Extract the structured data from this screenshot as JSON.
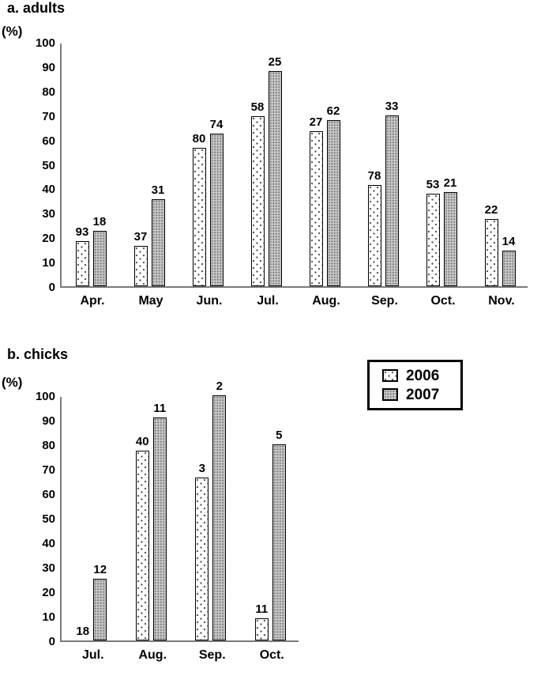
{
  "figure": {
    "background": "#ffffff",
    "colors": {
      "axis": "#7a7a7a",
      "bar_outline": "#000000",
      "bar_2006_fill": "#ffffff",
      "bar_2007_fill": "#c9c9c9",
      "text": "#000000"
    }
  },
  "legend": {
    "items": [
      {
        "label": "2006",
        "swatch": "sparse-dot-white"
      },
      {
        "label": "2007",
        "swatch": "dense-dot-gray"
      }
    ]
  },
  "chart_data": [
    {
      "id": "adults",
      "type": "bar",
      "title": "a. adults",
      "ylabel": "(%)",
      "ylim": [
        0,
        100
      ],
      "ytick_step": 10,
      "grid": false,
      "legend_position": "right-of-chicks-title",
      "categories": [
        "Apr.",
        "May",
        "Jun.",
        "Jul.",
        "Aug.",
        "Sep.",
        "Oct.",
        "Nov."
      ],
      "series": [
        {
          "name": "2006",
          "values": [
            18.5,
            16.5,
            56.5,
            69.5,
            63.5,
            41.5,
            38,
            27.5
          ],
          "bar_top_labels": [
            "93",
            "37",
            "80",
            "58",
            "27",
            "78",
            "53",
            "22"
          ]
        },
        {
          "name": "2007",
          "values": [
            22.5,
            35.5,
            62.5,
            88,
            68,
            70,
            38.5,
            14.5
          ],
          "bar_top_labels": [
            "18",
            "31",
            "74",
            "25",
            "62",
            "33",
            "21",
            "14"
          ]
        }
      ]
    },
    {
      "id": "chicks",
      "type": "bar",
      "title": "b. chicks",
      "ylabel": "(%)",
      "ylim": [
        0,
        100
      ],
      "ytick_step": 10,
      "grid": false,
      "categories": [
        "Jul.",
        "Aug.",
        "Sep.",
        "Oct."
      ],
      "series": [
        {
          "name": "2006",
          "values": [
            0,
            77.5,
            66.5,
            9
          ],
          "bar_top_labels": [
            "18",
            "40",
            "3",
            "11"
          ]
        },
        {
          "name": "2007",
          "values": [
            25,
            91,
            100,
            80
          ],
          "bar_top_labels": [
            "12",
            "11",
            "2",
            "5"
          ]
        }
      ]
    }
  ]
}
